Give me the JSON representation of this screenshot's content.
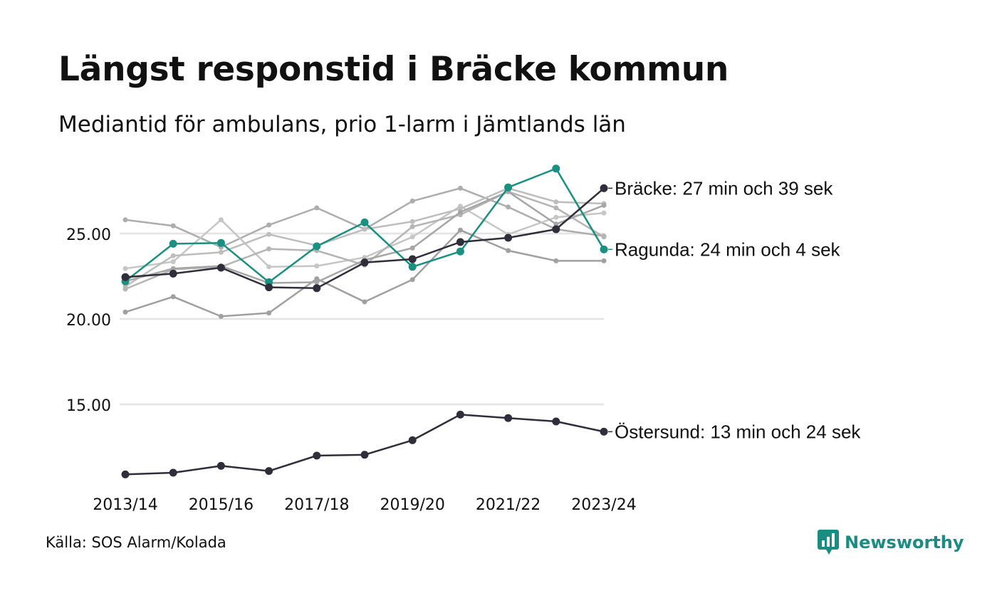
{
  "title": "Längst responstid i Bräcke kommun",
  "subtitle": "Mediantid för ambulans, prio 1-larm i Jämtlands län",
  "source": "Källa: SOS Alarm/Kolada",
  "brand": {
    "name": "Newsworthy",
    "icon": "bar-chart-speech-bubble-icon",
    "color": "#1a8c82"
  },
  "chart_data": {
    "type": "line",
    "x": [
      "2013/14",
      "2014/15",
      "2015/16",
      "2016/17",
      "2017/18",
      "2018/19",
      "2019/20",
      "2020/21",
      "2021/22",
      "2022/23",
      "2023/24"
    ],
    "x_tick_labels": [
      "2013/14",
      "2015/16",
      "2017/18",
      "2019/20",
      "2021/22",
      "2023/24"
    ],
    "y_ticks": [
      "15.00",
      "20.00",
      "25.00"
    ],
    "ylim": [
      9.5,
      29.5
    ],
    "grid": true,
    "colors": {
      "background_series": [
        "#adadad",
        "#c6c6c6",
        "#a0a0a0",
        "#bdbdbd",
        "#b5b5b5",
        "#a6a6a6"
      ],
      "highlight_dark": "#2f2e3a",
      "highlight_teal": "#1a9080",
      "grid": "#e4e4e4"
    },
    "series": [
      {
        "values": [
          25.8,
          25.45,
          24.2,
          25.5,
          26.5,
          25.25,
          26.9,
          27.65,
          26.55,
          25.25,
          24.85
        ],
        "style": "background"
      },
      {
        "values": [
          22.95,
          23.35,
          25.8,
          23.05,
          23.1,
          23.6,
          24.8,
          26.6,
          24.95,
          25.95,
          26.2
        ],
        "style": "background"
      },
      {
        "values": [
          20.4,
          21.3,
          20.15,
          20.35,
          22.35,
          21.0,
          22.3,
          25.2,
          24.0,
          23.4,
          23.4
        ],
        "style": "background"
      },
      {
        "values": [
          21.9,
          23.7,
          23.9,
          24.95,
          24.3,
          25.25,
          25.7,
          26.45,
          27.65,
          26.85,
          26.75
        ],
        "style": "background"
      },
      {
        "values": [
          21.75,
          22.9,
          23.05,
          24.1,
          24.0,
          23.15,
          25.4,
          26.1,
          27.45,
          26.5,
          24.8
        ],
        "style": "background"
      },
      {
        "values": [
          22.2,
          22.95,
          23.1,
          22.1,
          22.15,
          23.45,
          24.15,
          26.25,
          27.45,
          25.55,
          26.65
        ],
        "style": "background"
      },
      {
        "name": "Ragunda",
        "label": "Ragunda: 24 min och 4 sek",
        "values": [
          22.2,
          24.4,
          24.45,
          22.15,
          24.25,
          25.65,
          23.05,
          23.95,
          27.7,
          28.8,
          24.07
        ],
        "style": "teal"
      },
      {
        "name": "Bräcke",
        "label": "Bräcke: 27 min och 39 sek",
        "values": [
          22.45,
          22.65,
          23.0,
          21.85,
          21.8,
          23.3,
          23.5,
          24.5,
          24.75,
          25.25,
          27.65
        ],
        "style": "dark"
      },
      {
        "name": "Östersund",
        "label": "Östersund: 13 min och 24 sek",
        "values": [
          10.9,
          11.0,
          11.4,
          11.1,
          12.0,
          12.05,
          12.9,
          14.4,
          14.2,
          14.0,
          13.4
        ],
        "style": "dark"
      }
    ]
  }
}
